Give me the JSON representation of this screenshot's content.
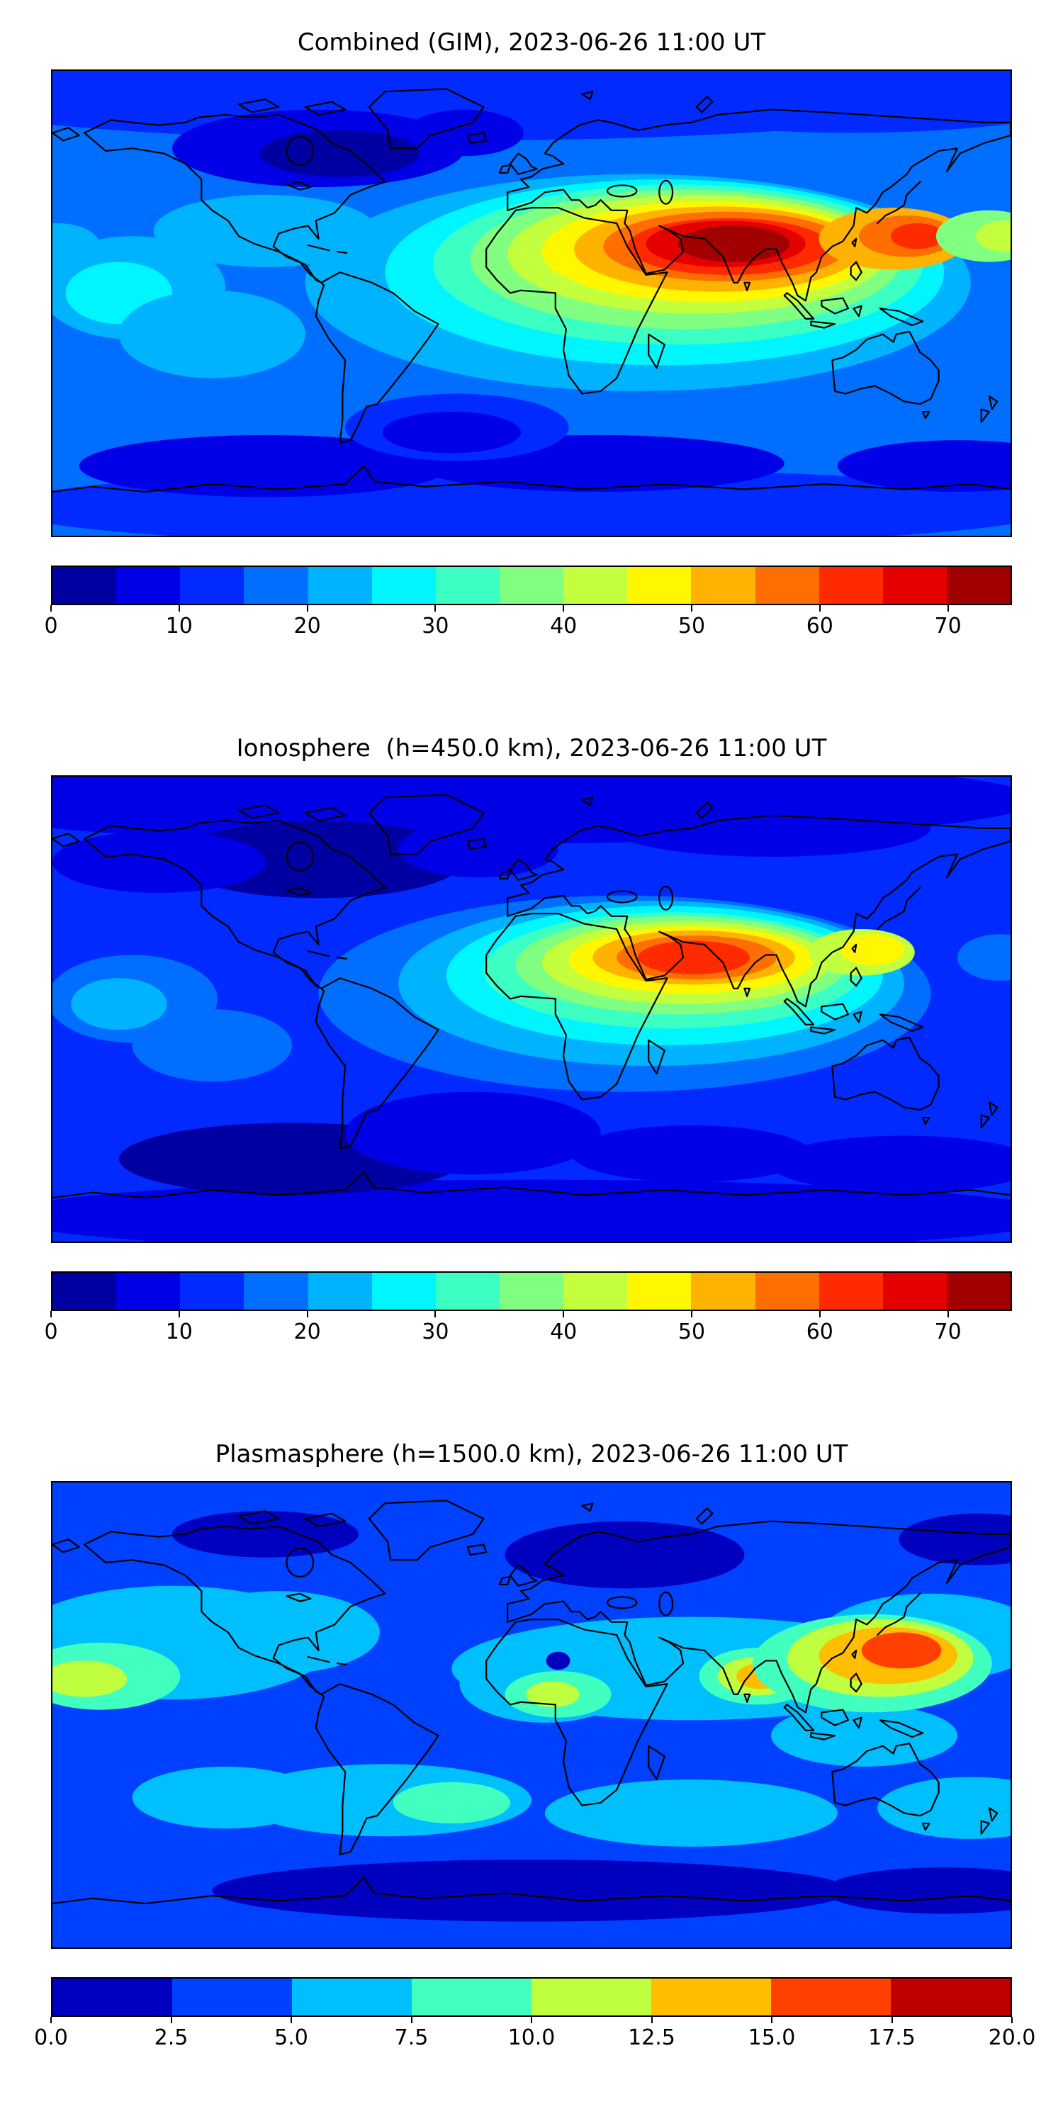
{
  "figure": {
    "background": "#ffffff",
    "coastline_color": "#000000",
    "colormap": "jet"
  },
  "chart_data": [
    {
      "type": "filled_contour_map",
      "title": "Combined (GIM), 2023-06-26 11:00 UT",
      "projection": "equirectangular",
      "lon_range": [
        -180,
        180
      ],
      "lat_range": [
        -90,
        90
      ],
      "colorbar": {
        "orientation": "horizontal",
        "vmin": 0,
        "vmax": 75,
        "level_step": 5,
        "tick_values": [
          0,
          10,
          20,
          30,
          40,
          50,
          60,
          70
        ],
        "tick_labels": [
          "0",
          "10",
          "20",
          "30",
          "40",
          "50",
          "60",
          "70"
        ]
      },
      "background_value": 17,
      "features": [
        {
          "lon": -30,
          "lat": 81,
          "rx": 200,
          "ry": 18,
          "value": 12
        },
        {
          "lon": 120,
          "lat": 80,
          "rx": 90,
          "ry": 14,
          "value": 12
        },
        {
          "lon": -80,
          "lat": 60,
          "rx": 55,
          "ry": 15,
          "value": 7
        },
        {
          "lon": -72,
          "lat": 58,
          "rx": 30,
          "ry": 9,
          "value": 3
        },
        {
          "lon": -25,
          "lat": 66,
          "rx": 22,
          "ry": 9,
          "value": 7
        },
        {
          "lon": 0,
          "lat": -79,
          "rx": 200,
          "ry": 15,
          "value": 12
        },
        {
          "lon": -100,
          "lat": -63,
          "rx": 70,
          "ry": 12,
          "value": 7
        },
        {
          "lon": 25,
          "lat": -62,
          "rx": 70,
          "ry": 11,
          "value": 7
        },
        {
          "lon": 160,
          "lat": -63,
          "rx": 45,
          "ry": 10,
          "value": 7
        },
        {
          "lon": -28,
          "lat": -48,
          "rx": 42,
          "ry": 13,
          "value": 12
        },
        {
          "lon": -30,
          "lat": -50,
          "rx": 26,
          "ry": 8,
          "value": 8
        },
        {
          "lon": -150,
          "lat": 6,
          "rx": 35,
          "ry": 20,
          "value": 22
        },
        {
          "lon": -155,
          "lat": 4,
          "rx": 20,
          "ry": 12,
          "value": 27
        },
        {
          "lon": -120,
          "lat": -12,
          "rx": 35,
          "ry": 17,
          "value": 22
        },
        {
          "lon": -100,
          "lat": 28,
          "rx": 42,
          "ry": 14,
          "value": 22
        },
        {
          "lon": -178,
          "lat": 22,
          "rx": 16,
          "ry": 9,
          "value": 22
        },
        {
          "lon": 40,
          "lat": 8,
          "rx": 125,
          "ry": 42,
          "value": 22
        },
        {
          "lon": 50,
          "lat": 12,
          "rx": 105,
          "ry": 36,
          "value": 27
        },
        {
          "lon": 55,
          "lat": 15,
          "rx": 92,
          "ry": 31,
          "value": 32
        },
        {
          "lon": 58,
          "lat": 17,
          "rx": 81,
          "ry": 27,
          "value": 37
        },
        {
          "lon": 62,
          "lat": 19,
          "rx": 71,
          "ry": 23,
          "value": 42
        },
        {
          "lon": 66,
          "lat": 20,
          "rx": 62,
          "ry": 19.5,
          "value": 47
        },
        {
          "lon": 70,
          "lat": 21,
          "rx": 54,
          "ry": 16.5,
          "value": 52
        },
        {
          "lon": 73,
          "lat": 22,
          "rx": 46,
          "ry": 13.5,
          "value": 57
        },
        {
          "lon": 74,
          "lat": 22,
          "rx": 38,
          "ry": 11,
          "value": 62
        },
        {
          "lon": 73,
          "lat": 23,
          "rx": 30,
          "ry": 9,
          "value": 67
        },
        {
          "lon": 76,
          "lat": 23,
          "rx": 21,
          "ry": 7,
          "value": 71
        },
        {
          "lon": 84,
          "lat": 23,
          "rx": 10,
          "ry": 4.5,
          "value": 74
        },
        {
          "lon": 136,
          "lat": 25,
          "rx": 28,
          "ry": 12,
          "value": 52
        },
        {
          "lon": 141,
          "lat": 26,
          "rx": 18,
          "ry": 8,
          "value": 57
        },
        {
          "lon": 145,
          "lat": 26,
          "rx": 10,
          "ry": 5,
          "value": 62
        },
        {
          "lon": 172,
          "lat": 26,
          "rx": 20,
          "ry": 10,
          "value": 37
        },
        {
          "lon": 178,
          "lat": 26,
          "rx": 11,
          "ry": 6,
          "value": 42
        }
      ]
    },
    {
      "type": "filled_contour_map",
      "title": "Ionosphere  (h=450.0 km), 2023-06-26 11:00 UT",
      "projection": "equirectangular",
      "lon_range": [
        -180,
        180
      ],
      "lat_range": [
        -90,
        90
      ],
      "colorbar": {
        "orientation": "horizontal",
        "vmin": 0,
        "vmax": 75,
        "level_step": 5,
        "tick_values": [
          0,
          10,
          20,
          30,
          40,
          50,
          60,
          70
        ],
        "tick_labels": [
          "0",
          "10",
          "20",
          "30",
          "40",
          "50",
          "60",
          "70"
        ]
      },
      "background_value": 13,
      "features": [
        {
          "lon": -20,
          "lat": 81,
          "rx": 210,
          "ry": 17,
          "value": 8
        },
        {
          "lon": -80,
          "lat": 58,
          "rx": 55,
          "ry": 15,
          "value": 4
        },
        {
          "lon": -20,
          "lat": 62,
          "rx": 30,
          "ry": 11,
          "value": 7
        },
        {
          "lon": -140,
          "lat": 57,
          "rx": 40,
          "ry": 12,
          "value": 8
        },
        {
          "lon": 90,
          "lat": 70,
          "rx": 60,
          "ry": 11,
          "value": 8
        },
        {
          "lon": 0,
          "lat": -80,
          "rx": 200,
          "ry": 14,
          "value": 8
        },
        {
          "lon": -90,
          "lat": -58,
          "rx": 65,
          "ry": 14,
          "value": 4
        },
        {
          "lon": -22,
          "lat": -48,
          "rx": 48,
          "ry": 16,
          "value": 6
        },
        {
          "lon": 140,
          "lat": -60,
          "rx": 50,
          "ry": 11,
          "value": 7
        },
        {
          "lon": 60,
          "lat": -56,
          "rx": 45,
          "ry": 11,
          "value": 8
        },
        {
          "lon": -150,
          "lat": 4,
          "rx": 32,
          "ry": 17,
          "value": 18
        },
        {
          "lon": -155,
          "lat": 2,
          "rx": 18,
          "ry": 10,
          "value": 22
        },
        {
          "lon": -120,
          "lat": -14,
          "rx": 30,
          "ry": 14,
          "value": 18
        },
        {
          "lon": 35,
          "lat": 6,
          "rx": 115,
          "ry": 38,
          "value": 18
        },
        {
          "lon": 45,
          "lat": 10,
          "rx": 95,
          "ry": 32,
          "value": 22
        },
        {
          "lon": 50,
          "lat": 13,
          "rx": 82,
          "ry": 27,
          "value": 27
        },
        {
          "lon": 53,
          "lat": 15,
          "rx": 71,
          "ry": 22.5,
          "value": 32
        },
        {
          "lon": 56,
          "lat": 17,
          "rx": 62,
          "ry": 19,
          "value": 37
        },
        {
          "lon": 58,
          "lat": 18,
          "rx": 54,
          "ry": 16,
          "value": 42
        },
        {
          "lon": 60,
          "lat": 19,
          "rx": 46,
          "ry": 13,
          "value": 47
        },
        {
          "lon": 61,
          "lat": 20,
          "rx": 38,
          "ry": 10.5,
          "value": 52
        },
        {
          "lon": 62,
          "lat": 20,
          "rx": 30,
          "ry": 8.5,
          "value": 57
        },
        {
          "lon": 61,
          "lat": 20,
          "rx": 21,
          "ry": 6.5,
          "value": 61
        },
        {
          "lon": 124,
          "lat": 22,
          "rx": 20,
          "ry": 9,
          "value": 42
        },
        {
          "lon": 128,
          "lat": 23,
          "rx": 12,
          "ry": 6,
          "value": 47
        },
        {
          "lon": 176,
          "lat": 20,
          "rx": 16,
          "ry": 9,
          "value": 18
        }
      ]
    },
    {
      "type": "filled_contour_map",
      "title": "Plasmasphere (h=1500.0 km), 2023-06-26 11:00 UT",
      "projection": "equirectangular",
      "lon_range": [
        -180,
        180
      ],
      "lat_range": [
        -90,
        90
      ],
      "colorbar": {
        "orientation": "horizontal",
        "vmin": 0,
        "vmax": 20,
        "level_step": 2.5,
        "tick_values": [
          0,
          2.5,
          5,
          7.5,
          10,
          12.5,
          15,
          17.5,
          20
        ],
        "tick_labels": [
          "0.0",
          "2.5",
          "5.0",
          "7.5",
          "10.0",
          "12.5",
          "15.0",
          "17.5",
          "20.0"
        ]
      },
      "background_value": 4,
      "features": [
        {
          "lon": 35,
          "lat": 62,
          "rx": 45,
          "ry": 13,
          "value": 1.5
        },
        {
          "lon": 168,
          "lat": 68,
          "rx": 30,
          "ry": 10,
          "value": 1.5
        },
        {
          "lon": -100,
          "lat": 70,
          "rx": 35,
          "ry": 9,
          "value": 1.8
        },
        {
          "lon": 0,
          "lat": -68,
          "rx": 120,
          "ry": 12,
          "value": 1.8
        },
        {
          "lon": 155,
          "lat": -68,
          "rx": 45,
          "ry": 9,
          "value": 1.8
        },
        {
          "lon": -135,
          "lat": 28,
          "rx": 60,
          "ry": 22,
          "value": 6
        },
        {
          "lon": -95,
          "lat": 32,
          "rx": 38,
          "ry": 16,
          "value": 6
        },
        {
          "lon": -162,
          "lat": 15,
          "rx": 30,
          "ry": 13,
          "value": 8.8
        },
        {
          "lon": -168,
          "lat": 14,
          "rx": 16,
          "ry": 7,
          "value": 11.2
        },
        {
          "lon": 60,
          "lat": 18,
          "rx": 90,
          "ry": 20,
          "value": 6
        },
        {
          "lon": 5,
          "lat": 12,
          "rx": 32,
          "ry": 15,
          "value": 6
        },
        {
          "lon": 150,
          "lat": 30,
          "rx": 42,
          "ry": 17,
          "value": 6
        },
        {
          "lon": 125,
          "lat": -8,
          "rx": 35,
          "ry": 12,
          "value": 6
        },
        {
          "lon": 10,
          "lat": 8,
          "rx": 20,
          "ry": 9,
          "value": 8.8
        },
        {
          "lon": 8,
          "lat": 8,
          "rx": 10,
          "ry": 5,
          "value": 11.2
        },
        {
          "lon": 10,
          "lat": 21,
          "rx": 4.5,
          "ry": 3.5,
          "value": 1.5
        },
        {
          "lon": 85,
          "lat": 15,
          "rx": 22,
          "ry": 11,
          "value": 8.8
        },
        {
          "lon": 85,
          "lat": 15,
          "rx": 15,
          "ry": 7.5,
          "value": 11.2
        },
        {
          "lon": 86,
          "lat": 15,
          "rx": 9,
          "ry": 5,
          "value": 13.8
        },
        {
          "lon": 128,
          "lat": 20,
          "rx": 45,
          "ry": 19,
          "value": 8.8
        },
        {
          "lon": 131,
          "lat": 22,
          "rx": 35,
          "ry": 15,
          "value": 11.2
        },
        {
          "lon": 134,
          "lat": 23,
          "rx": 26,
          "ry": 11,
          "value": 13.8
        },
        {
          "lon": 139,
          "lat": 25,
          "rx": 15,
          "ry": 7,
          "value": 16.2
        },
        {
          "lon": -55,
          "lat": -33,
          "rx": 55,
          "ry": 14,
          "value": 6
        },
        {
          "lon": -30,
          "lat": -34,
          "rx": 22,
          "ry": 8,
          "value": 8.8
        },
        {
          "lon": 60,
          "lat": -38,
          "rx": 55,
          "ry": 13,
          "value": 6
        },
        {
          "lon": 165,
          "lat": -36,
          "rx": 35,
          "ry": 12,
          "value": 6
        },
        {
          "lon": -115,
          "lat": -32,
          "rx": 35,
          "ry": 12,
          "value": 6
        }
      ]
    }
  ]
}
